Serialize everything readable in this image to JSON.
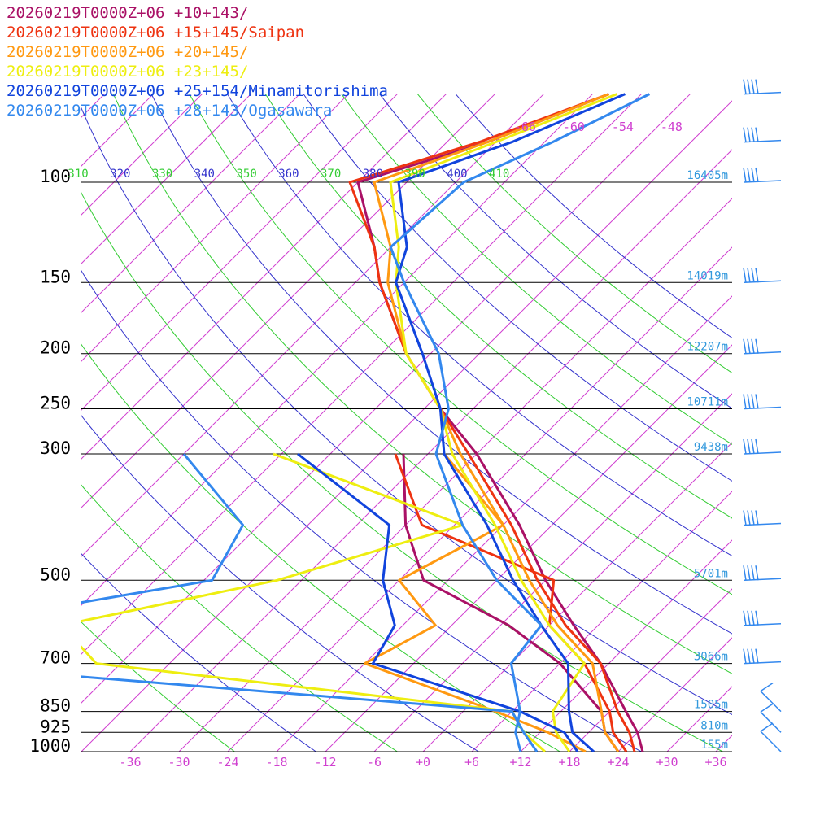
{
  "chart_data": {
    "type": "line",
    "title": "",
    "xlabel": "",
    "ylabel": "",
    "pressure_axis": {
      "levels": [
        100,
        150,
        200,
        250,
        300,
        500,
        700,
        850,
        925,
        1000
      ],
      "labels": [
        "100",
        "150",
        "200",
        "250",
        "300",
        "500",
        "700",
        "850",
        "925",
        "1000"
      ],
      "heights": [
        "16405m",
        "14019m",
        "12207m",
        "10711m",
        "9438m",
        "5701m",
        "3066m",
        "1505m",
        "810m",
        "155m"
      ],
      "scale": "log",
      "range_hpa": [
        70,
        1000
      ]
    },
    "temperature_axis": {
      "ticks": [
        -36,
        -30,
        -24,
        -18,
        -12,
        -6,
        0,
        6,
        12,
        18,
        24,
        30,
        36
      ],
      "tick_labels": [
        "-36",
        "-30",
        "-24",
        "-18",
        "-12",
        "-6",
        "+0",
        "+6",
        "+12",
        "+18",
        "+24",
        "+30",
        "+36"
      ],
      "range_c": [
        -42,
        38
      ],
      "skew": true
    },
    "isotherm_labels": [
      "-66",
      "-60",
      "-54",
      "-48"
    ],
    "isotherm_label_values": [
      -66,
      -60,
      -54,
      -48
    ],
    "theta_labels": [
      "310",
      "320",
      "330",
      "340",
      "350",
      "360",
      "370",
      "380",
      "390",
      "400",
      "410"
    ],
    "theta_values": [
      310,
      320,
      330,
      340,
      350,
      360,
      370,
      380,
      390,
      400,
      410
    ],
    "theta_colors": [
      "#33cc33",
      "#3333cc"
    ],
    "legend_placement": "top-left",
    "series": [
      {
        "name": "20260219T0000Z+06 +10+143/",
        "color": "#aa1166",
        "temperature": [
          {
            "p": 70,
            "t": -58
          },
          {
            "p": 85,
            "t": -67
          },
          {
            "p": 100,
            "t": -78
          },
          {
            "p": 130,
            "t": -68
          },
          {
            "p": 150,
            "t": -63
          },
          {
            "p": 200,
            "t": -51
          },
          {
            "p": 250,
            "t": -40
          },
          {
            "p": 300,
            "t": -30
          },
          {
            "p": 400,
            "t": -16
          },
          {
            "p": 500,
            "t": -6
          },
          {
            "p": 600,
            "t": 3
          },
          {
            "p": 700,
            "t": 11
          },
          {
            "p": 850,
            "t": 20
          },
          {
            "p": 925,
            "t": 24
          },
          {
            "p": 1000,
            "t": 27
          }
        ],
        "dewpoint": [
          {
            "p": 300,
            "t": -39
          },
          {
            "p": 400,
            "t": -30
          },
          {
            "p": 500,
            "t": -21
          },
          {
            "p": 600,
            "t": -5
          },
          {
            "p": 700,
            "t": 6
          },
          {
            "p": 850,
            "t": 17
          },
          {
            "p": 925,
            "t": 20
          },
          {
            "p": 1000,
            "t": 24
          }
        ]
      },
      {
        "name": "20260219T0000Z+06 +15+145/Saipan",
        "color": "#ee3311",
        "temperature": [
          {
            "p": 70,
            "t": -58
          },
          {
            "p": 85,
            "t": -68
          },
          {
            "p": 100,
            "t": -79
          },
          {
            "p": 130,
            "t": -68
          },
          {
            "p": 150,
            "t": -63
          },
          {
            "p": 200,
            "t": -51
          },
          {
            "p": 250,
            "t": -40
          },
          {
            "p": 300,
            "t": -31
          },
          {
            "p": 400,
            "t": -17
          },
          {
            "p": 500,
            "t": -7
          },
          {
            "p": 600,
            "t": 2
          },
          {
            "p": 700,
            "t": 11
          },
          {
            "p": 850,
            "t": 19
          },
          {
            "p": 925,
            "t": 23
          },
          {
            "p": 1000,
            "t": 26
          }
        ],
        "dewpoint": [
          {
            "p": 300,
            "t": -40
          },
          {
            "p": 400,
            "t": -28
          },
          {
            "p": 500,
            "t": -5
          },
          {
            "p": 600,
            "t": 0
          },
          {
            "p": 700,
            "t": 9
          },
          {
            "p": 850,
            "t": 18
          },
          {
            "p": 925,
            "t": 21
          },
          {
            "p": 1000,
            "t": 25
          }
        ]
      },
      {
        "name": "20260219T0000Z+06 +20+145/",
        "color": "#ff9911",
        "temperature": [
          {
            "p": 70,
            "t": -58
          },
          {
            "p": 85,
            "t": -67
          },
          {
            "p": 100,
            "t": -76
          },
          {
            "p": 130,
            "t": -66
          },
          {
            "p": 150,
            "t": -62
          },
          {
            "p": 200,
            "t": -51
          },
          {
            "p": 250,
            "t": -40
          },
          {
            "p": 300,
            "t": -32
          },
          {
            "p": 400,
            "t": -18
          },
          {
            "p": 500,
            "t": -8
          },
          {
            "p": 600,
            "t": 1
          },
          {
            "p": 700,
            "t": 10
          },
          {
            "p": 850,
            "t": 17
          },
          {
            "p": 925,
            "t": 20
          },
          {
            "p": 1000,
            "t": 24
          }
        ],
        "dewpoint": [
          {
            "p": 300,
            "t": -34
          },
          {
            "p": 400,
            "t": -18
          },
          {
            "p": 500,
            "t": -24
          },
          {
            "p": 600,
            "t": -14
          },
          {
            "p": 700,
            "t": -18
          },
          {
            "p": 850,
            "t": 4
          },
          {
            "p": 925,
            "t": 13
          },
          {
            "p": 1000,
            "t": 20
          }
        ]
      },
      {
        "name": "20260219T0000Z+06 +23+145/",
        "color": "#eeee11",
        "temperature": [
          {
            "p": 70,
            "t": -57
          },
          {
            "p": 85,
            "t": -66
          },
          {
            "p": 100,
            "t": -74
          },
          {
            "p": 130,
            "t": -65
          },
          {
            "p": 150,
            "t": -61
          },
          {
            "p": 200,
            "t": -51
          },
          {
            "p": 250,
            "t": -40
          },
          {
            "p": 300,
            "t": -33
          },
          {
            "p": 400,
            "t": -19
          },
          {
            "p": 500,
            "t": -9
          },
          {
            "p": 600,
            "t": 0
          },
          {
            "p": 700,
            "t": 9
          },
          {
            "p": 850,
            "t": 11
          },
          {
            "p": 925,
            "t": 14
          },
          {
            "p": 1000,
            "t": 18
          }
        ],
        "dewpoint": [
          {
            "p": 300,
            "t": -55
          },
          {
            "p": 400,
            "t": -23
          },
          {
            "p": 500,
            "t": -39
          },
          {
            "p": 600,
            "t": -60
          },
          {
            "p": 700,
            "t": -51
          },
          {
            "p": 850,
            "t": 6
          },
          {
            "p": 925,
            "t": 10
          },
          {
            "p": 1000,
            "t": 15
          }
        ]
      },
      {
        "name": "20260219T0000Z+06 +25+154/Minamitorishima",
        "color": "#1144dd",
        "temperature": [
          {
            "p": 70,
            "t": -56
          },
          {
            "p": 85,
            "t": -64
          },
          {
            "p": 100,
            "t": -73
          },
          {
            "p": 130,
            "t": -64
          },
          {
            "p": 150,
            "t": -61
          },
          {
            "p": 200,
            "t": -49
          },
          {
            "p": 250,
            "t": -40
          },
          {
            "p": 300,
            "t": -34
          },
          {
            "p": 400,
            "t": -20
          },
          {
            "p": 500,
            "t": -10
          },
          {
            "p": 600,
            "t": -1
          },
          {
            "p": 700,
            "t": 7
          },
          {
            "p": 850,
            "t": 13
          },
          {
            "p": 925,
            "t": 16
          },
          {
            "p": 1000,
            "t": 21
          }
        ],
        "dewpoint": [
          {
            "p": 300,
            "t": -52
          },
          {
            "p": 400,
            "t": -32
          },
          {
            "p": 500,
            "t": -26
          },
          {
            "p": 600,
            "t": -19
          },
          {
            "p": 700,
            "t": -17
          },
          {
            "p": 850,
            "t": 7
          },
          {
            "p": 925,
            "t": 15
          },
          {
            "p": 1000,
            "t": 19
          }
        ]
      },
      {
        "name": "20260219T0000Z+06 +28+143/Ogasawara",
        "color": "#3388ee",
        "temperature": [
          {
            "p": 70,
            "t": -53
          },
          {
            "p": 85,
            "t": -59
          },
          {
            "p": 100,
            "t": -65
          },
          {
            "p": 130,
            "t": -66
          },
          {
            "p": 150,
            "t": -60
          },
          {
            "p": 200,
            "t": -47
          },
          {
            "p": 250,
            "t": -39
          },
          {
            "p": 300,
            "t": -35
          },
          {
            "p": 400,
            "t": -23
          },
          {
            "p": 500,
            "t": -12
          },
          {
            "p": 600,
            "t": -1
          },
          {
            "p": 700,
            "t": 0
          },
          {
            "p": 850,
            "t": 7
          },
          {
            "p": 925,
            "t": 9
          },
          {
            "p": 1000,
            "t": 12
          }
        ],
        "dewpoint": [
          {
            "p": 300,
            "t": -66
          },
          {
            "p": 400,
            "t": -50
          },
          {
            "p": 500,
            "t": -47
          },
          {
            "p": 600,
            "t": -74
          },
          {
            "p": 700,
            "t": -73
          },
          {
            "p": 850,
            "t": 6
          },
          {
            "p": 925,
            "t": 10
          },
          {
            "p": 1000,
            "t": 14
          }
        ]
      }
    ]
  }
}
